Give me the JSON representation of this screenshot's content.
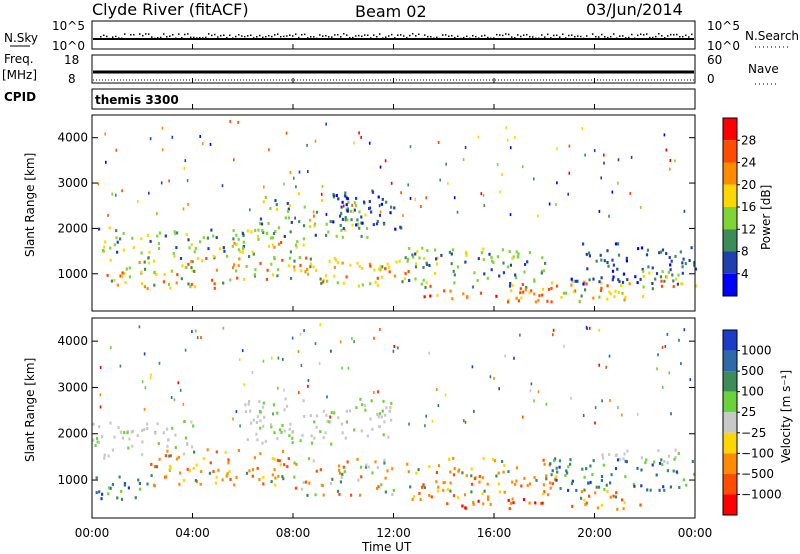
{
  "header": {
    "station": "Clyde River (fitACF)",
    "beam": "Beam 02",
    "date": "03/Jun/2014"
  },
  "panels": {
    "nsky": {
      "left_label": "N.Sky",
      "right_label": "N.Search",
      "ticks_left": [
        "10^5",
        "10^0"
      ],
      "ticks_right": [
        "10^5",
        "10^0"
      ]
    },
    "freq": {
      "left_label_1": "Freq.",
      "left_label_2": "[MHz]",
      "right_label": "Nave",
      "ticks_left": [
        "18",
        "8"
      ],
      "ticks_right": [
        "60",
        "0"
      ]
    },
    "cpid": {
      "left_label": "CPID",
      "program": "themis 3300"
    }
  },
  "colorbars": {
    "power": {
      "label": "Power [dB]",
      "ticks": [
        "28",
        "24",
        "20",
        "16",
        "12",
        "8",
        "4"
      ],
      "colors": [
        "#ff0000",
        "#ff4d00",
        "#ff8c00",
        "#ffd700",
        "#7fd43a",
        "#3c8c5a",
        "#2140b0",
        "#0000ff"
      ]
    },
    "velocity": {
      "label": "Velocity [m s⁻¹]",
      "ticks": [
        "1000",
        "500",
        "100",
        "25",
        "−25",
        "−100",
        "−500",
        "−1000"
      ],
      "colors": [
        "#1c3cc8",
        "#2c6aa8",
        "#3c8c5a",
        "#6cd23c",
        "#c8c8c8",
        "#ffd700",
        "#ff8c00",
        "#ff4d00",
        "#ff0000"
      ]
    }
  },
  "chart_data": [
    {
      "type": "heatmap",
      "title": "Power",
      "ylabel": "Slant Range [km]",
      "xlabel": "",
      "xlim": [
        0,
        24
      ],
      "ylim": [
        180,
        4500
      ],
      "y_ticks": [
        "4000",
        "3000",
        "2000",
        "1000"
      ],
      "x_ticks": [
        "00:00",
        "04:00",
        "08:00",
        "12:00",
        "16:00",
        "20:00",
        "00:00"
      ],
      "bands": [
        {
          "t0": 0,
          "t1": 1.5,
          "r0": 1500,
          "r1": 2100,
          "level": "mid"
        },
        {
          "t0": 0.5,
          "t1": 5.5,
          "r0": 700,
          "r1": 1400,
          "level": "high"
        },
        {
          "t0": 1.5,
          "t1": 6.5,
          "r0": 1300,
          "r1": 2000,
          "level": "mid"
        },
        {
          "t0": 5.5,
          "t1": 8.5,
          "r0": 900,
          "r1": 1800,
          "level": "high"
        },
        {
          "t0": 6.5,
          "t1": 11,
          "r0": 1800,
          "r1": 2800,
          "level": "mid"
        },
        {
          "t0": 9.5,
          "t1": 12.5,
          "r0": 2000,
          "r1": 2900,
          "level": "low"
        },
        {
          "t0": 8,
          "t1": 13,
          "r0": 700,
          "r1": 1400,
          "level": "high"
        },
        {
          "t0": 12.5,
          "t1": 18,
          "r0": 700,
          "r1": 1600,
          "level": "mid"
        },
        {
          "t0": 13,
          "t1": 18.5,
          "r0": 400,
          "r1": 800,
          "level": "veryhigh"
        },
        {
          "t0": 18,
          "t1": 22,
          "r0": 400,
          "r1": 900,
          "level": "high"
        },
        {
          "t0": 19,
          "t1": 24,
          "r0": 800,
          "r1": 1700,
          "level": "low"
        },
        {
          "t0": 21.5,
          "t1": 24,
          "r0": 700,
          "r1": 1100,
          "level": "high"
        }
      ]
    },
    {
      "type": "heatmap",
      "title": "Velocity",
      "ylabel": "Slant Range [km]",
      "xlabel": "Time UT",
      "xlim": [
        0,
        24
      ],
      "ylim": [
        180,
        4500
      ],
      "y_ticks": [
        "4000",
        "3000",
        "2000",
        "1000"
      ],
      "x_ticks": [
        "00:00",
        "04:00",
        "08:00",
        "12:00",
        "16:00",
        "20:00",
        "00:00"
      ],
      "bands": [
        {
          "t0": 0,
          "t1": 4,
          "r0": 1500,
          "r1": 2300,
          "level": "ground"
        },
        {
          "t0": 0,
          "t1": 2,
          "r0": 600,
          "r1": 1200,
          "level": "toward"
        },
        {
          "t0": 2,
          "t1": 8,
          "r0": 900,
          "r1": 1700,
          "level": "away"
        },
        {
          "t0": 6,
          "t1": 12,
          "r0": 1800,
          "r1": 2800,
          "level": "ground"
        },
        {
          "t0": 8,
          "t1": 12,
          "r0": 700,
          "r1": 1500,
          "level": "mixed"
        },
        {
          "t0": 12.5,
          "t1": 18.5,
          "r0": 600,
          "r1": 1500,
          "level": "away"
        },
        {
          "t0": 14,
          "t1": 18,
          "r0": 400,
          "r1": 700,
          "level": "strongaway"
        },
        {
          "t0": 18,
          "t1": 24,
          "r0": 800,
          "r1": 1500,
          "level": "toward"
        },
        {
          "t0": 20,
          "t1": 24,
          "r0": 1400,
          "r1": 1700,
          "level": "ground"
        },
        {
          "t0": 19,
          "t1": 22,
          "r0": 400,
          "r1": 800,
          "level": "away"
        }
      ]
    }
  ]
}
